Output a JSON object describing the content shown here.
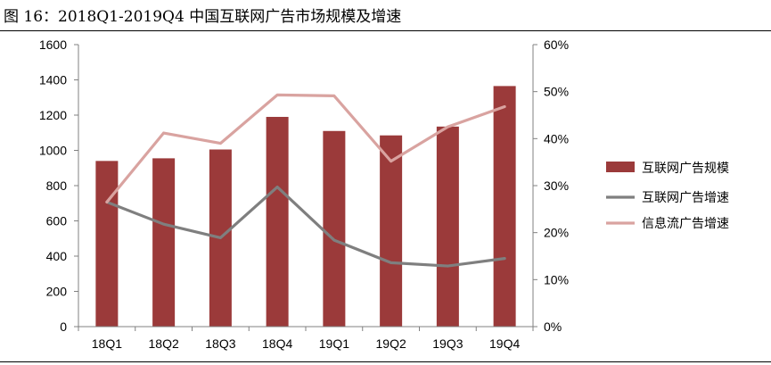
{
  "figure": {
    "caption": "图 16：2018Q1-2019Q4 中国互联网广告市场规模及增速"
  },
  "colors": {
    "bar": "#9b3a3a",
    "growth_line": "#7f7f7f",
    "feed_line": "#d9a3a0",
    "axis": "#808080"
  },
  "chart_data": {
    "type": "bar",
    "categories": [
      "18Q1",
      "18Q2",
      "18Q3",
      "18Q4",
      "19Q1",
      "19Q2",
      "19Q3",
      "19Q4"
    ],
    "title": "",
    "xlabel": "",
    "ylabel": "",
    "ylim": [
      0,
      1600
    ],
    "y2lim": [
      0,
      60
    ],
    "y_ticks": [
      "0",
      "200",
      "400",
      "600",
      "800",
      "1000",
      "1200",
      "1400",
      "1600"
    ],
    "y2_ticks": [
      "0%",
      "10%",
      "20%",
      "30%",
      "40%",
      "50%",
      "60%"
    ],
    "grid": false,
    "legend_position": "right",
    "series": [
      {
        "name": "互联网广告规模",
        "kind": "bar",
        "axis": "left",
        "values": [
          940,
          955,
          1005,
          1190,
          1110,
          1085,
          1135,
          1365
        ]
      },
      {
        "name": "互联网广告增速",
        "kind": "line",
        "axis": "right",
        "values": [
          26.5,
          21.8,
          18.9,
          29.7,
          18.4,
          13.6,
          12.9,
          14.5
        ]
      },
      {
        "name": "信息流广告增速",
        "kind": "line",
        "axis": "right",
        "values": [
          26.5,
          41.2,
          39.0,
          49.3,
          49.1,
          35.2,
          42.5,
          46.8
        ]
      }
    ]
  }
}
